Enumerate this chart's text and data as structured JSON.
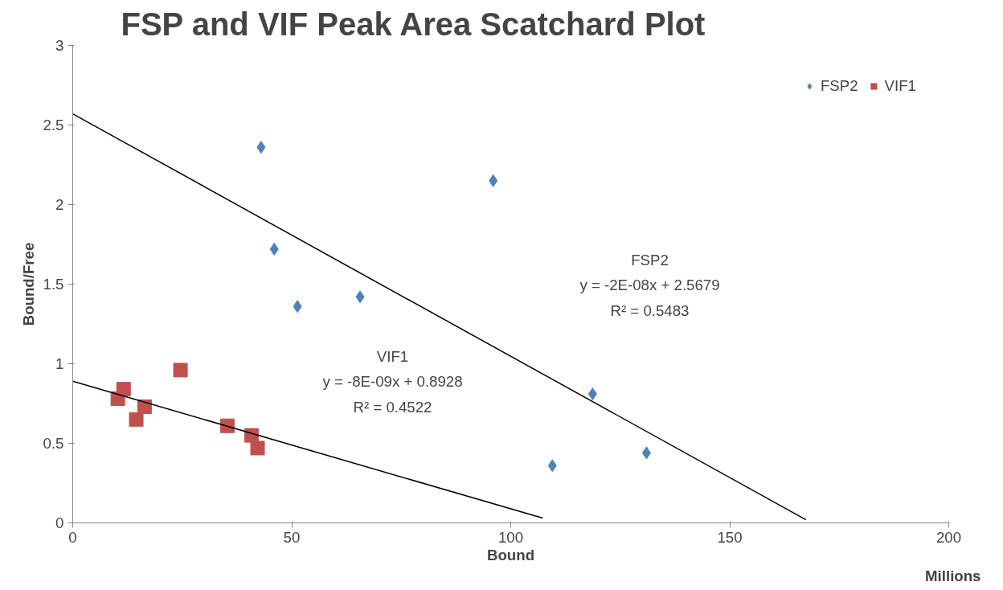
{
  "chart_data": {
    "type": "scatter",
    "title": "FSP and VIF Peak Area Scatchard Plot",
    "xlabel": "Bound",
    "ylabel": "Bound/Free",
    "xlim": [
      0,
      200
    ],
    "xticks": [
      0,
      50,
      100,
      150,
      200
    ],
    "ylim": [
      0,
      3
    ],
    "yticks": [
      0,
      0.5,
      1,
      1.5,
      2,
      2.5,
      3
    ],
    "grid": false,
    "legend": "top right",
    "series": [
      {
        "name": "FSP2",
        "color": "#4f81bd",
        "marker": "diamond",
        "x": [
          43,
          46,
          51.3,
          65.6,
          96,
          118.7,
          109.5,
          131
        ],
        "values": [
          2.36,
          1.72,
          1.36,
          1.42,
          2.15,
          0.81,
          0.36,
          0.44
        ]
      },
      {
        "name": "VIF1",
        "color": "#c0504d",
        "marker": "square",
        "x": [
          10.3,
          11.6,
          14.5,
          16.4,
          24.6,
          35.3,
          40.8,
          42.2
        ],
        "values": [
          0.78,
          0.84,
          0.65,
          0.73,
          0.96,
          0.61,
          0.55,
          0.47
        ]
      },
      {
        "type": "line",
        "color": "#000000",
        "x": [
          0,
          167.4
        ],
        "values": [
          2.57,
          0.02
        ]
      },
      {
        "type": "line",
        "color": "#000000",
        "x": [
          0,
          107.3
        ],
        "values": [
          0.89,
          0.03
        ]
      }
    ],
    "annotations": [
      "FSP2\ny = -2E-08x + 2.5679\nR² = 0.5483",
      "VIF1\ny = -8E-09x + 0.8928\nR² = 0.4522",
      "Millions"
    ]
  }
}
